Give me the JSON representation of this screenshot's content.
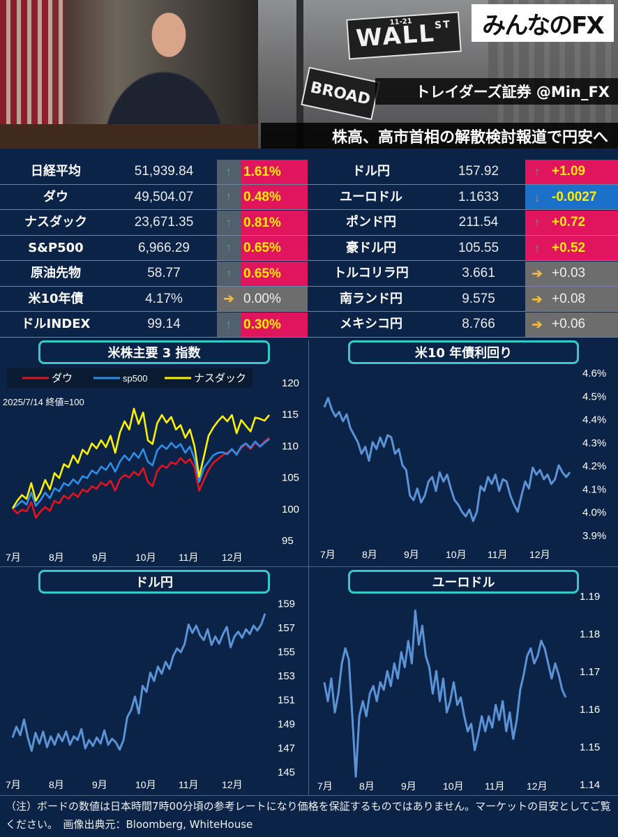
{
  "header": {
    "logo": "みんなのFX",
    "brand": "トレイダーズ証券 @Min_FX",
    "headline": "株高、高市首相の解散検討報道で円安へ",
    "sign_wall": "WALL",
    "sign_wall_sup": "ST",
    "sign_wall_num": "11-21",
    "sign_broad": "BROAD"
  },
  "colors": {
    "up": "#e0155d",
    "down": "#1b71c9",
    "flat": "#6d6d6d",
    "up_arrow": "#53a37b",
    "down_arrow": "#f07b24",
    "flat_arrow": "#f5b740",
    "up_text_stock": "#ffee00"
  },
  "quotes_left": [
    {
      "name": "日経平均",
      "value": "51,939.84",
      "change": "1.61%",
      "dir": "up"
    },
    {
      "name": "ダウ",
      "value": "49,504.07",
      "change": "0.48%",
      "dir": "up"
    },
    {
      "name": "ナスダック",
      "value": "23,671.35",
      "change": "0.81%",
      "dir": "up"
    },
    {
      "name": "S&P500",
      "value": "6,966.29",
      "change": "0.65%",
      "dir": "up"
    },
    {
      "name": "原油先物",
      "value": "58.77",
      "change": "0.65%",
      "dir": "up"
    },
    {
      "name": "米10年債",
      "value": "4.17%",
      "change": "0.00%",
      "dir": "flat"
    },
    {
      "name": "ドルINDEX",
      "value": "99.14",
      "change": "0.30%",
      "dir": "up"
    }
  ],
  "quotes_right": [
    {
      "name": "ドル円",
      "value": "157.92",
      "change": "+1.09",
      "dir": "up"
    },
    {
      "name": "ユーロドル",
      "value": "1.1633",
      "change": "-0.0027",
      "dir": "down"
    },
    {
      "name": "ポンド円",
      "value": "211.54",
      "change": "+0.72",
      "dir": "up"
    },
    {
      "name": "豪ドル円",
      "value": "105.55",
      "change": "+0.52",
      "dir": "up"
    },
    {
      "name": "トルコリラ円",
      "value": "3.661",
      "change": "+0.03",
      "dir": "flat"
    },
    {
      "name": "南ランド円",
      "value": "9.575",
      "change": "+0.08",
      "dir": "flat"
    },
    {
      "name": "メキシコ円",
      "value": "8.766",
      "change": "+0.06",
      "dir": "flat"
    }
  ],
  "chart_data": [
    {
      "type": "line",
      "title": "米株主要 3 指数",
      "subtitle": "2025/7/14 終値=100",
      "legend_position": "top-left",
      "x_ticks": [
        "7月",
        "8月",
        "9月",
        "10月",
        "11月",
        "12月"
      ],
      "y_ticks": [
        "120",
        "115",
        "110",
        "105",
        "100",
        "95"
      ],
      "ylim": [
        95,
        120
      ],
      "series": [
        {
          "name": "ダウ",
          "color": "#e3141e",
          "values": [
            100,
            99.2,
            99.8,
            99.5,
            101,
            98.5,
            99.5,
            100.2,
            99.6,
            101.2,
            100.8,
            102,
            101.5,
            102.4,
            101.8,
            103,
            102.6,
            103.5,
            103.1,
            104.1,
            103.6,
            104.4,
            102.8,
            104.6,
            105.3,
            104.9,
            105.8,
            105.2,
            106.4,
            104.2,
            103.5,
            105.9,
            106.8,
            106.4,
            107.3,
            107,
            108,
            107.2,
            107.8,
            106.5,
            102.8,
            104.5,
            106.1,
            107.2,
            107.8,
            108.4,
            108.8,
            109.3,
            108.7,
            109.6,
            110.2,
            109.4,
            110.4,
            109.8,
            110.6,
            111.2
          ]
        },
        {
          "name": "sp500",
          "color": "#2f8fe8",
          "values": [
            100,
            100.5,
            101.2,
            100.6,
            102.5,
            100.4,
            101.3,
            102.5,
            101.6,
            103.2,
            102.7,
            104,
            103.6,
            104.6,
            103.9,
            105.1,
            104.8,
            106,
            105.5,
            106.6,
            106.1,
            107.2,
            105.8,
            107.4,
            108.4,
            107.6,
            108.8,
            108,
            109.4,
            107.4,
            106.8,
            109.2,
            110,
            109.4,
            110.4,
            109.6,
            110.2,
            108.8,
            109.8,
            107.8,
            104.2,
            106.4,
            107.4,
            108.4,
            108.8,
            108.9,
            108.6,
            109.4,
            108.5,
            109.8,
            110.3,
            109.6,
            110.6,
            109.8,
            110.4,
            111
          ]
        },
        {
          "name": "ナスダック",
          "color": "#fff200",
          "values": [
            100,
            101.2,
            102.1,
            101.5,
            104,
            101.2,
            102.5,
            104.5,
            103,
            105.6,
            104.8,
            107,
            106.5,
            108.4,
            107.2,
            109.3,
            108.6,
            110.3,
            109.5,
            110.8,
            109.7,
            111.5,
            108.8,
            112,
            113.8,
            112.5,
            115.8,
            113.4,
            115.2,
            110.8,
            110.2,
            113.5,
            114.8,
            113.6,
            114.5,
            112.5,
            113.2,
            111.2,
            112.5,
            109.8,
            105,
            108.2,
            111.5,
            112.8,
            113.8,
            114.6,
            113.8,
            114.8,
            111.9,
            114,
            113.1,
            112.2,
            114.4,
            114.2,
            113.9,
            114.8
          ]
        }
      ]
    },
    {
      "type": "line",
      "title": "米10 年債利回り",
      "x_ticks": [
        "7月",
        "8月",
        "9月",
        "10月",
        "11月",
        "12月"
      ],
      "y_ticks": [
        "4.6%",
        "4.5%",
        "4.4%",
        "4.3%",
        "4.2%",
        "4.1%",
        "4.0%",
        "3.9%"
      ],
      "ylim": [
        3.9,
        4.6
      ],
      "series": [
        {
          "name": "",
          "color": "#5b93d6",
          "values": [
            4.45,
            4.49,
            4.44,
            4.41,
            4.43,
            4.39,
            4.42,
            4.36,
            4.33,
            4.3,
            4.25,
            4.28,
            4.22,
            4.3,
            4.27,
            4.32,
            4.28,
            4.33,
            4.32,
            4.25,
            4.27,
            4.2,
            4.18,
            4.07,
            4.05,
            4.1,
            4.04,
            4.07,
            4.13,
            4.15,
            4.09,
            4.17,
            4.13,
            4.16,
            4.1,
            4.05,
            4.03,
            4.0,
            3.98,
            4.01,
            3.96,
            4.0,
            4.11,
            4.09,
            4.15,
            4.12,
            4.16,
            4.09,
            4.14,
            4.13,
            4.07,
            4.03,
            4.0,
            4.07,
            4.13,
            4.1,
            4.19,
            4.16,
            4.18,
            4.14,
            4.16,
            4.12,
            4.14,
            4.2,
            4.17,
            4.15,
            4.17
          ]
        }
      ]
    },
    {
      "type": "line",
      "title": "ドル円",
      "x_ticks": [
        "7月",
        "8月",
        "9月",
        "10月",
        "11月",
        "12月"
      ],
      "y_ticks": [
        "159",
        "157",
        "155",
        "153",
        "151",
        "149",
        "147",
        "145"
      ],
      "ylim": [
        144,
        160
      ],
      "series": [
        {
          "name": "",
          "color": "#5b93d6",
          "values": [
            147.8,
            148.7,
            148,
            149.3,
            147.8,
            146.7,
            148.2,
            147.3,
            148.3,
            147,
            147.9,
            147.2,
            148.1,
            147.5,
            148.3,
            147.2,
            147.9,
            147.6,
            148.5,
            146.9,
            147.6,
            147.1,
            147.8,
            147.3,
            148.4,
            147.2,
            147.7,
            147.4,
            146.8,
            147.6,
            149.5,
            150.1,
            151.2,
            149.8,
            152.1,
            151.6,
            153.2,
            152.5,
            153.7,
            153.1,
            154.1,
            153.5,
            154.6,
            155.2,
            154.9,
            155.6,
            157.2,
            156.5,
            157.1,
            156.3,
            155.9,
            156.8,
            155.5,
            156.2,
            155.6,
            156.4,
            157,
            155.3,
            156.2,
            156.6,
            156.1,
            156.8,
            156.4,
            157.1,
            156.7,
            157.2,
            158.1
          ]
        }
      ]
    },
    {
      "type": "line",
      "title": "ユーロドル",
      "x_ticks": [
        "7月",
        "8月",
        "9月",
        "10月",
        "11月",
        "12月"
      ],
      "y_ticks": [
        "1.19",
        "1.18",
        "1.17",
        "1.16",
        "1.15",
        "1.14"
      ],
      "ylim": [
        1.138,
        1.192
      ],
      "series": [
        {
          "name": "",
          "color": "#5b93d6",
          "values": [
            1.167,
            1.162,
            1.168,
            1.159,
            1.164,
            1.172,
            1.176,
            1.173,
            1.158,
            1.142,
            1.158,
            1.162,
            1.158,
            1.164,
            1.166,
            1.162,
            1.167,
            1.165,
            1.17,
            1.166,
            1.172,
            1.168,
            1.175,
            1.171,
            1.178,
            1.172,
            1.186,
            1.177,
            1.182,
            1.174,
            1.171,
            1.164,
            1.17,
            1.162,
            1.168,
            1.159,
            1.162,
            1.167,
            1.161,
            1.163,
            1.158,
            1.154,
            1.156,
            1.149,
            1.153,
            1.158,
            1.154,
            1.158,
            1.155,
            1.161,
            1.157,
            1.162,
            1.154,
            1.159,
            1.152,
            1.157,
            1.165,
            1.169,
            1.174,
            1.176,
            1.172,
            1.174,
            1.178,
            1.176,
            1.172,
            1.168,
            1.172,
            1.169,
            1.165,
            1.163
          ]
        }
      ]
    }
  ],
  "note": "（注）ボードの数値は日本時間7時00分頃の参考レートになり価格を保証するものではありません。マーケットの目安としてご覧ください。　画像出典元：Bloomberg, WhiteHouse"
}
